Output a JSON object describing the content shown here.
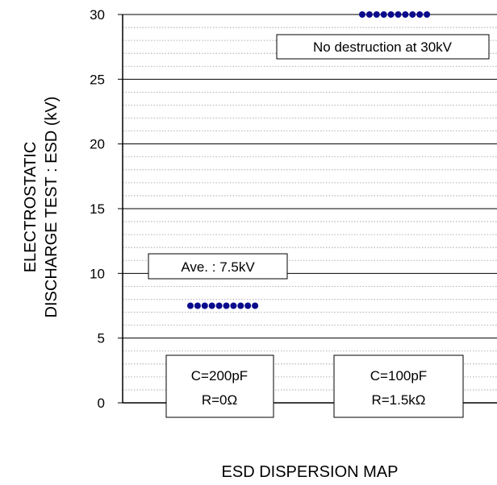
{
  "chart_data": {
    "type": "scatter",
    "title": "",
    "xlabel": "ESD DISPERSION MAP",
    "ylabel_lines": [
      "ELECTROSTATIC",
      "DISCHARGE TEST : ESD (kV)"
    ],
    "ylim": [
      0,
      30
    ],
    "yticks": [
      0,
      5,
      10,
      15,
      20,
      25,
      30
    ],
    "ytick_labels": [
      "0",
      "5",
      "10",
      "15",
      "20",
      "25",
      "30"
    ],
    "major_grid_step": 5,
    "minor_grid_step": 1,
    "groups": [
      {
        "label_lines": [
          "C=200pF",
          "R=0Ω"
        ],
        "point_count": 10,
        "value": 7.5
      },
      {
        "label_lines": [
          "C=100pF",
          "R=1.5kΩ"
        ],
        "point_count": 10,
        "value": 30
      }
    ],
    "annotations": [
      {
        "text": "Ave. : 7.5kV",
        "group": 0
      },
      {
        "text": "No destruction at 30kV",
        "group": 1
      }
    ],
    "point_color": "#0a0a8c"
  }
}
